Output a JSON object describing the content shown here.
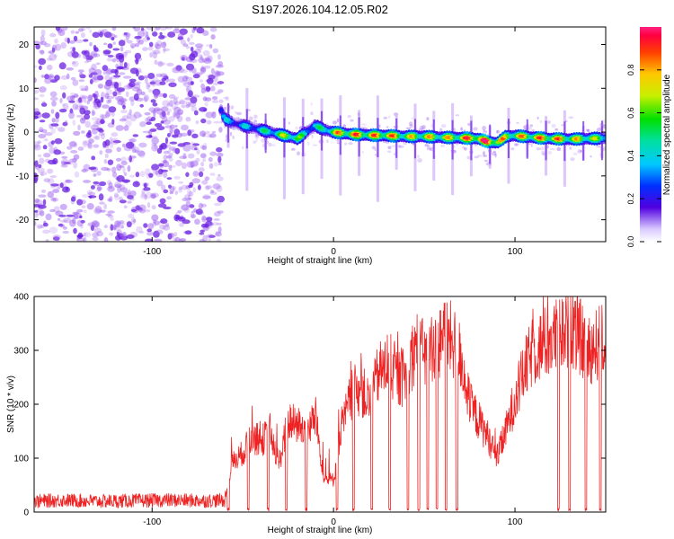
{
  "figure": {
    "title": "S197.2026.104.12.05.R02"
  },
  "colors": {
    "snr_line": "#ee2222",
    "speckle": "#9b5cf0",
    "speckle_dark": "#6a1fe0"
  },
  "chart_data": [
    {
      "type": "heatmap",
      "title": "",
      "xlabel": "Height of straight line (km)",
      "ylabel": "Frequency (Hz)",
      "xlim": [
        -165,
        150
      ],
      "ylim": [
        -25,
        24
      ],
      "xticks": [
        -100,
        0,
        100
      ],
      "yticks": [
        -20,
        -10,
        0,
        10,
        20
      ],
      "colorbar": {
        "label": "Normalized spectral amplitude",
        "range": [
          0.0,
          1.0
        ],
        "ticks": [
          0.0,
          0.2,
          0.4,
          0.6,
          0.8
        ]
      },
      "noise_region_end_km": -62,
      "ridge": {
        "x_km": [
          -62,
          -60,
          -55,
          -50,
          -45,
          -40,
          -35,
          -30,
          -25,
          -20,
          -15,
          -10,
          -5,
          0,
          10,
          20,
          30,
          40,
          50,
          60,
          70,
          80,
          85,
          90,
          95,
          100,
          110,
          120,
          130,
          140,
          148
        ],
        "freq_hz": [
          5,
          3,
          2,
          1.5,
          1,
          0.5,
          0,
          -0.5,
          -1,
          -1.5,
          0,
          1.5,
          0.5,
          0,
          -0.5,
          -0.7,
          -0.8,
          -1,
          -1,
          -1.2,
          -1.3,
          -1.5,
          -2.2,
          -2.5,
          -1,
          -0.8,
          -1.2,
          -1.5,
          -1.6,
          -1.5,
          -1.4
        ],
        "amplitude": [
          0.35,
          0.4,
          0.3,
          0.4,
          0.35,
          0.45,
          0.5,
          0.6,
          0.7,
          0.65,
          0.4,
          0.45,
          0.5,
          0.75,
          0.85,
          0.8,
          0.85,
          0.7,
          0.75,
          0.7,
          0.8,
          0.95,
          0.95,
          0.9,
          0.7,
          0.75,
          0.8,
          0.85,
          0.75,
          0.7,
          0.6
        ]
      }
    },
    {
      "type": "line",
      "title": "",
      "xlabel": "Height of straight line (km)",
      "ylabel": "SNR (10 * v/v)",
      "xlim": [
        -165,
        150
      ],
      "ylim": [
        0,
        400
      ],
      "xticks": [
        -100,
        0,
        100
      ],
      "yticks": [
        0,
        100,
        200,
        300,
        400
      ],
      "series": [
        {
          "name": "SNR",
          "x_km": [
            -165,
            -150,
            -130,
            -110,
            -90,
            -70,
            -60,
            -56,
            -50,
            -45,
            -40,
            -35,
            -30,
            -25,
            -20,
            -15,
            -10,
            -5,
            0,
            5,
            10,
            15,
            20,
            25,
            30,
            35,
            40,
            45,
            50,
            55,
            60,
            65,
            70,
            75,
            80,
            85,
            90,
            95,
            100,
            105,
            110,
            115,
            120,
            125,
            130,
            135,
            140,
            145,
            150
          ],
          "snr": [
            20,
            22,
            20,
            21,
            22,
            21,
            22,
            90,
            110,
            140,
            130,
            150,
            90,
            170,
            160,
            150,
            175,
            60,
            60,
            160,
            220,
            230,
            200,
            260,
            270,
            250,
            250,
            310,
            290,
            310,
            320,
            320,
            290,
            200,
            170,
            140,
            100,
            150,
            210,
            260,
            300,
            310,
            320,
            330,
            340,
            330,
            300,
            310,
            330
          ]
        }
      ],
      "dropouts_km": [
        -58,
        -47,
        -36,
        -26,
        -15,
        2,
        11,
        21,
        31,
        41,
        47,
        52,
        57,
        62,
        68,
        124,
        130,
        139,
        147
      ]
    }
  ]
}
